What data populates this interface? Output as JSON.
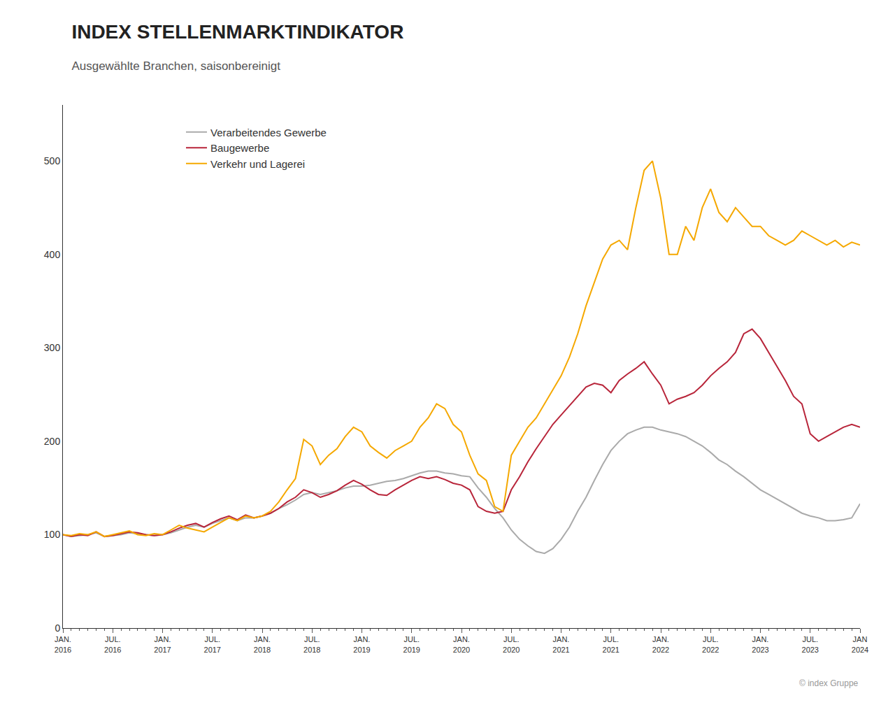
{
  "chart_data": {
    "type": "line",
    "title": "INDEX STELLENMARKTINDIKATOR",
    "subtitle": "Ausgewählte Branchen, saisonbereinigt",
    "annotations": [
      "© index Gruppe"
    ],
    "categories": [
      "JAN.\n2016",
      null,
      null,
      null,
      null,
      null,
      "JUL.\n2016",
      null,
      null,
      null,
      null,
      null,
      "JAN.\n2017",
      null,
      null,
      null,
      null,
      null,
      "JUL.\n2017",
      null,
      null,
      null,
      null,
      null,
      "JAN.\n2018",
      null,
      null,
      null,
      null,
      null,
      "JUL.\n2018",
      null,
      null,
      null,
      null,
      null,
      "JAN.\n2019",
      null,
      null,
      null,
      null,
      null,
      "JUL.\n2019",
      null,
      null,
      null,
      null,
      null,
      "JAN.\n2020",
      null,
      null,
      null,
      null,
      null,
      "JUL.\n2020",
      null,
      null,
      null,
      null,
      null,
      "JAN.\n2021",
      null,
      null,
      null,
      null,
      null,
      "JUL.\n2021",
      null,
      null,
      null,
      null,
      null,
      "JAN.\n2022",
      null,
      null,
      null,
      null,
      null,
      "JUL.\n2022",
      null,
      null,
      null,
      null,
      null,
      "JAN.\n2023",
      null,
      null,
      null,
      null,
      null,
      "JUL.\n2023",
      null,
      null,
      null,
      null,
      null,
      "JAN\n2024"
    ],
    "series": [
      {
        "name": "Verarbeitendes Gewerbe",
        "color": "#AAAAAA",
        "values": [
          100,
          98,
          99,
          100,
          102,
          98,
          99,
          100,
          102,
          101,
          100,
          99,
          100,
          102,
          105,
          108,
          110,
          108,
          112,
          115,
          118,
          115,
          118,
          118,
          120,
          123,
          128,
          132,
          137,
          143,
          145,
          143,
          145,
          147,
          150,
          152,
          152,
          153,
          155,
          157,
          158,
          160,
          163,
          166,
          168,
          168,
          166,
          165,
          163,
          162,
          150,
          140,
          128,
          118,
          105,
          95,
          88,
          82,
          80,
          85,
          95,
          108,
          125,
          140,
          158,
          175,
          190,
          200,
          208,
          212,
          215,
          215,
          212,
          210,
          208,
          205,
          200,
          195,
          188,
          180,
          175,
          168,
          162,
          155,
          148,
          143,
          138,
          133,
          128,
          123,
          120,
          118,
          115,
          115,
          116,
          118,
          133
        ]
      },
      {
        "name": "Baugewerbe",
        "color": "#B8253A",
        "values": [
          100,
          98,
          100,
          99,
          103,
          98,
          99,
          101,
          103,
          102,
          100,
          99,
          100,
          103,
          107,
          110,
          112,
          108,
          113,
          117,
          120,
          116,
          121,
          118,
          120,
          123,
          128,
          135,
          140,
          148,
          145,
          140,
          143,
          147,
          153,
          158,
          154,
          148,
          143,
          142,
          148,
          153,
          158,
          162,
          160,
          162,
          159,
          155,
          153,
          148,
          130,
          125,
          123,
          125,
          148,
          162,
          178,
          192,
          205,
          218,
          228,
          238,
          248,
          258,
          262,
          260,
          252,
          265,
          272,
          278,
          285,
          272,
          260,
          240,
          245,
          248,
          252,
          260,
          270,
          278,
          285,
          295,
          315,
          320,
          310,
          295,
          280,
          265,
          248,
          240,
          208,
          200,
          205,
          210,
          215,
          218,
          215
        ]
      },
      {
        "name": "Verkehr und Lagerei",
        "color": "#F5A800",
        "values": [
          100,
          99,
          101,
          100,
          103,
          98,
          100,
          102,
          104,
          100,
          99,
          101,
          100,
          105,
          110,
          107,
          105,
          103,
          108,
          113,
          118,
          115,
          120,
          118,
          120,
          125,
          135,
          148,
          160,
          202,
          195,
          175,
          185,
          192,
          205,
          215,
          210,
          195,
          188,
          182,
          190,
          195,
          200,
          215,
          225,
          240,
          235,
          218,
          210,
          185,
          165,
          158,
          130,
          125,
          185,
          200,
          215,
          225,
          240,
          255,
          270,
          290,
          315,
          345,
          370,
          395,
          410,
          415,
          405,
          450,
          490,
          500,
          460,
          400,
          400,
          430,
          415,
          450,
          470,
          445,
          435,
          450,
          440,
          430,
          430,
          420,
          415,
          410,
          415,
          425,
          420,
          415,
          410,
          415,
          408,
          413,
          410
        ]
      }
    ],
    "ylim": [
      0,
      560
    ],
    "yticks": [
      0,
      100,
      200,
      300,
      400,
      500
    ],
    "grid": false,
    "legend": "upper left"
  }
}
